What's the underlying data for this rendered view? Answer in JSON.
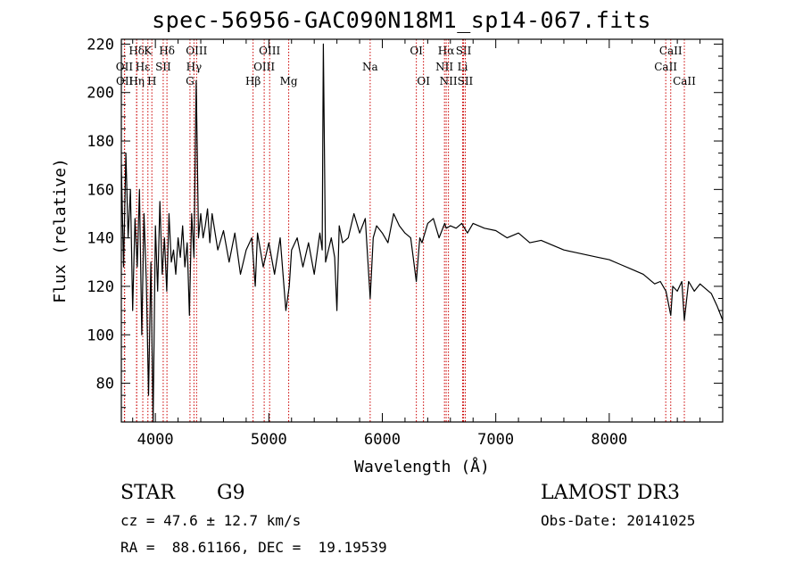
{
  "chart_data": {
    "type": "line",
    "title": "spec-56956-GAC090N18M1_sp14-067.fits",
    "xlabel": "Wavelength (Å)",
    "ylabel": "Flux (relative)",
    "xlim": [
      3700,
      9000
    ],
    "ylim": [
      64,
      222
    ],
    "xticks": [
      4000,
      5000,
      6000,
      7000,
      8000
    ],
    "yticks": [
      80,
      100,
      120,
      140,
      160,
      180,
      200,
      220
    ],
    "line_markers": [
      {
        "label": "Hδ",
        "wave": 3835,
        "row": 0
      },
      {
        "label": "OII",
        "wave": 3727,
        "row": 1
      },
      {
        "label": "OII",
        "wave": 3729,
        "row": 2
      },
      {
        "label": "Hε",
        "wave": 3889,
        "row": 1
      },
      {
        "label": "Hη",
        "wave": 3835,
        "row": 2
      },
      {
        "label": "K",
        "wave": 3934,
        "row": 0
      },
      {
        "label": "H",
        "wave": 3969,
        "row": 2
      },
      {
        "label": "SII",
        "wave": 4069,
        "row": 1
      },
      {
        "label": "Hδ",
        "wave": 4102,
        "row": 0
      },
      {
        "label": "OIII",
        "wave": 4363,
        "row": 0
      },
      {
        "label": "Hγ",
        "wave": 4340,
        "row": 1
      },
      {
        "label": "G",
        "wave": 4305,
        "row": 2
      },
      {
        "label": "Hβ",
        "wave": 4861,
        "row": 2
      },
      {
        "label": "OIII",
        "wave": 5007,
        "row": 0
      },
      {
        "label": "OIII",
        "wave": 4959,
        "row": 1
      },
      {
        "label": "Mg",
        "wave": 5175,
        "row": 2
      },
      {
        "label": "Na",
        "wave": 5893,
        "row": 1
      },
      {
        "label": "OI",
        "wave": 6300,
        "row": 0
      },
      {
        "label": "OI",
        "wave": 6363,
        "row": 2
      },
      {
        "label": "Hα",
        "wave": 6563,
        "row": 0
      },
      {
        "label": "NII",
        "wave": 6548,
        "row": 1
      },
      {
        "label": "NII",
        "wave": 6583,
        "row": 2
      },
      {
        "label": "SII",
        "wave": 6716,
        "row": 0
      },
      {
        "label": "Li",
        "wave": 6708,
        "row": 1
      },
      {
        "label": "SII",
        "wave": 6731,
        "row": 2
      },
      {
        "label": "CaII",
        "wave": 8542,
        "row": 0
      },
      {
        "label": "CaII",
        "wave": 8498,
        "row": 1
      },
      {
        "label": "CaII",
        "wave": 8662,
        "row": 2
      }
    ],
    "series": [
      {
        "name": "flux",
        "x": [
          3700,
          3720,
          3740,
          3760,
          3780,
          3800,
          3820,
          3840,
          3860,
          3880,
          3900,
          3920,
          3940,
          3960,
          3980,
          4000,
          4020,
          4040,
          4060,
          4080,
          4100,
          4120,
          4140,
          4160,
          4180,
          4200,
          4220,
          4240,
          4260,
          4280,
          4300,
          4320,
          4340,
          4360,
          4380,
          4400,
          4420,
          4440,
          4460,
          4480,
          4500,
          4550,
          4600,
          4650,
          4700,
          4750,
          4800,
          4850,
          4880,
          4900,
          4950,
          5000,
          5050,
          5100,
          5150,
          5180,
          5200,
          5250,
          5300,
          5350,
          5400,
          5450,
          5470,
          5480,
          5500,
          5550,
          5580,
          5600,
          5620,
          5650,
          5700,
          5750,
          5800,
          5850,
          5893,
          5920,
          5950,
          6000,
          6050,
          6100,
          6150,
          6200,
          6250,
          6300,
          6330,
          6350,
          6400,
          6450,
          6500,
          6550,
          6563,
          6600,
          6650,
          6700,
          6750,
          6800,
          6900,
          7000,
          7100,
          7200,
          7300,
          7400,
          7500,
          7600,
          7700,
          7800,
          7900,
          8000,
          8100,
          8200,
          8300,
          8400,
          8450,
          8500,
          8542,
          8560,
          8600,
          8640,
          8662,
          8700,
          8750,
          8800,
          8850,
          8900,
          8950,
          9000
        ],
        "y": [
          170,
          128,
          175,
          140,
          160,
          110,
          148,
          128,
          160,
          100,
          150,
          122,
          75,
          130,
          64,
          145,
          118,
          155,
          125,
          140,
          118,
          150,
          130,
          135,
          125,
          140,
          132,
          145,
          128,
          138,
          108,
          150,
          132,
          205,
          140,
          150,
          140,
          145,
          152,
          138,
          150,
          135,
          143,
          130,
          142,
          125,
          135,
          140,
          120,
          142,
          128,
          138,
          125,
          140,
          110,
          120,
          135,
          140,
          128,
          138,
          125,
          142,
          135,
          220,
          130,
          140,
          132,
          110,
          145,
          138,
          140,
          150,
          142,
          148,
          115,
          140,
          145,
          142,
          138,
          150,
          145,
          142,
          140,
          122,
          140,
          138,
          146,
          148,
          140,
          146,
          144,
          145,
          144,
          146,
          142,
          146,
          144,
          143,
          140,
          142,
          138,
          139,
          137,
          135,
          134,
          133,
          132,
          131,
          129,
          127,
          125,
          121,
          122,
          118,
          108,
          120,
          118,
          122,
          106,
          122,
          118,
          121,
          119,
          117,
          112,
          106
        ]
      }
    ]
  },
  "info": {
    "object_type": "STAR",
    "subclass": "G9",
    "survey": "LAMOST DR3",
    "redshift": "cz = 47.6 ± 12.7 km/s",
    "obs_date": "Obs-Date: 20141025",
    "coords": "RA =  88.61166, DEC =  19.19539"
  },
  "colors": {
    "spectrum": "#000000",
    "line_marker": "#cc0000",
    "axis": "#000000"
  }
}
